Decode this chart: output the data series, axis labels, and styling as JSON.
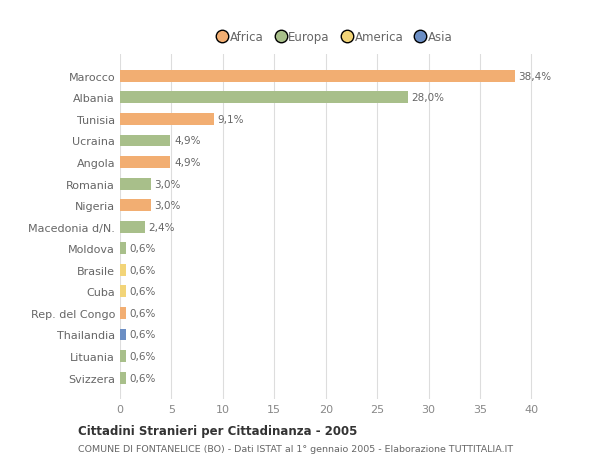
{
  "countries": [
    "Marocco",
    "Albania",
    "Tunisia",
    "Ucraina",
    "Angola",
    "Romania",
    "Nigeria",
    "Macedonia d/N.",
    "Moldova",
    "Brasile",
    "Cuba",
    "Rep. del Congo",
    "Thailandia",
    "Lituania",
    "Svizzera"
  ],
  "values": [
    38.4,
    28.0,
    9.1,
    4.9,
    4.9,
    3.0,
    3.0,
    2.4,
    0.6,
    0.6,
    0.6,
    0.6,
    0.6,
    0.6,
    0.6
  ],
  "labels": [
    "38,4%",
    "28,0%",
    "9,1%",
    "4,9%",
    "4,9%",
    "3,0%",
    "3,0%",
    "2,4%",
    "0,6%",
    "0,6%",
    "0,6%",
    "0,6%",
    "0,6%",
    "0,6%",
    "0,6%"
  ],
  "continents": [
    "Africa",
    "Europa",
    "Africa",
    "Europa",
    "Africa",
    "Europa",
    "Africa",
    "Europa",
    "Europa",
    "America",
    "America",
    "Africa",
    "Asia",
    "Europa",
    "Europa"
  ],
  "colors": {
    "Africa": "#F2AE72",
    "Europa": "#A8BF8A",
    "America": "#F2D478",
    "Asia": "#6B8EC4"
  },
  "legend_items": [
    "Africa",
    "Europa",
    "America",
    "Asia"
  ],
  "legend_colors": [
    "#F2AE72",
    "#A8BF8A",
    "#F2D478",
    "#6B8EC4"
  ],
  "xlim": [
    0,
    42
  ],
  "xticks": [
    0,
    5,
    10,
    15,
    20,
    25,
    30,
    35,
    40
  ],
  "title": "Cittadini Stranieri per Cittadinanza - 2005",
  "subtitle": "COMUNE DI FONTANELICE (BO) - Dati ISTAT al 1° gennaio 2005 - Elaborazione TUTTITALIA.IT",
  "bg_color": "#FFFFFF",
  "plot_bg_color": "#FFFFFF",
  "grid_color": "#DDDDDD",
  "bar_height": 0.55,
  "label_fontsize": 7.5,
  "ytick_fontsize": 8,
  "xtick_fontsize": 8
}
